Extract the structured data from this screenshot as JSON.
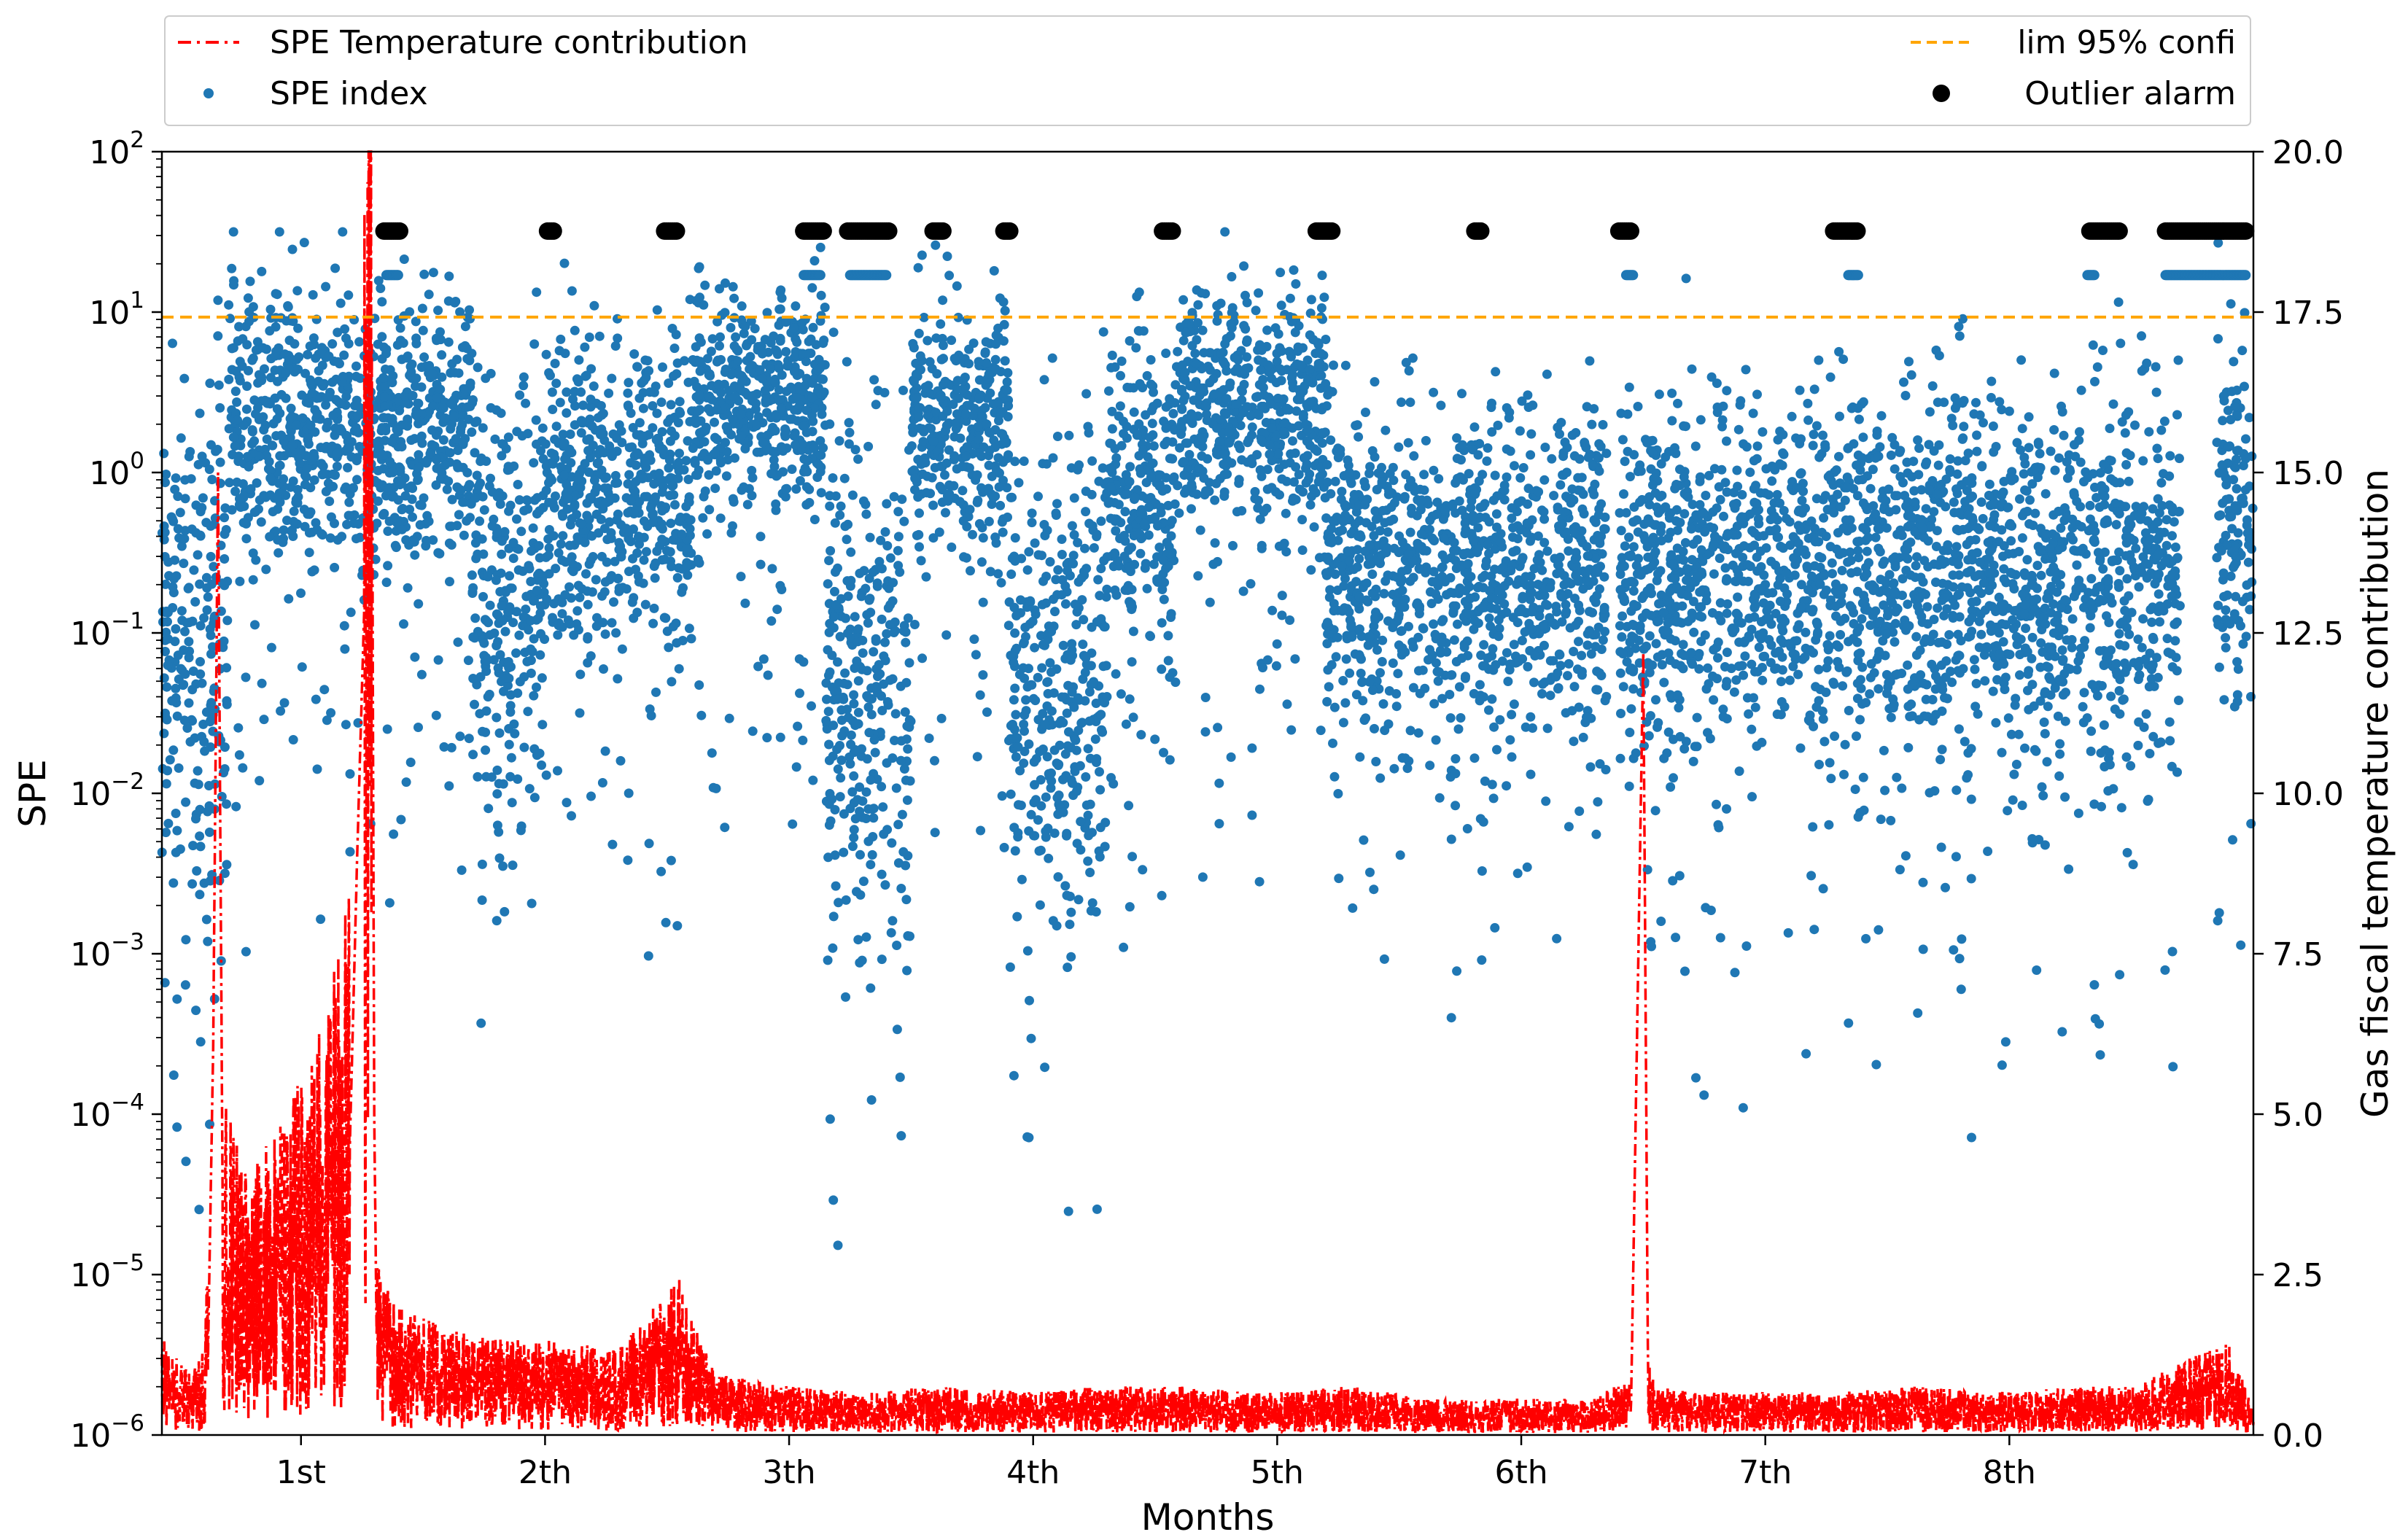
{
  "chart_data": {
    "type": "scatter",
    "xlabel": "Months",
    "ylabel": "SPE",
    "y2label": "Gas fiscal temperature contribution",
    "x_tick_labels": [
      "1st",
      "2th",
      "3th",
      "4th",
      "5th",
      "6th",
      "7th",
      "8th"
    ],
    "x_tick_values": [
      1,
      2,
      3,
      4,
      5,
      6,
      7,
      8
    ],
    "xlim": [
      0.43,
      9.0
    ],
    "y_scale": "log",
    "ylim": [
      1e-06,
      100
    ],
    "y_tick_labels": [
      {
        "base": "10",
        "exp": "−6"
      },
      {
        "base": "10",
        "exp": "−5"
      },
      {
        "base": "10",
        "exp": "−4"
      },
      {
        "base": "10",
        "exp": "−3"
      },
      {
        "base": "10",
        "exp": "−2"
      },
      {
        "base": "10",
        "exp": "−1"
      },
      {
        "base": "10",
        "exp": "0"
      },
      {
        "base": "10",
        "exp": "1"
      },
      {
        "base": "10",
        "exp": "2"
      }
    ],
    "y2lim": [
      0.0,
      20.0
    ],
    "y2_tick_labels": [
      "0.0",
      "2.5",
      "5.0",
      "7.5",
      "10.0",
      "12.5",
      "15.0",
      "17.5",
      "20.0"
    ],
    "legend_position": "top, above plot",
    "legend": [
      {
        "label": "SPE Temperature contribution",
        "color": "#ff0000",
        "style": "dash-dot line"
      },
      {
        "label": "SPE index",
        "color": "#1f77b4",
        "style": "dot"
      },
      {
        "label": "lim 95% confi",
        "color": "#ffa500",
        "style": "dashed line"
      },
      {
        "label": "Outlier alarm",
        "color": "#000000",
        "style": "dot"
      }
    ],
    "series": [
      {
        "name": "SPE index",
        "axis": "left",
        "color": "#1f77b4",
        "segments": [
          {
            "x": [
              0.43,
              0.7
            ],
            "center": 0.1,
            "spread": 1.5
          },
          {
            "x": [
              0.7,
              1.45
            ],
            "center": 2.0,
            "spread": 0.8
          },
          {
            "x": [
              1.45,
              1.7
            ],
            "center": 2.0,
            "spread": 0.7
          },
          {
            "x": [
              1.7,
              2.0
            ],
            "center": 0.2,
            "spread": 1.2
          },
          {
            "x": [
              2.0,
              2.6
            ],
            "center": 0.7,
            "spread": 0.8
          },
          {
            "x": [
              2.6,
              3.15
            ],
            "center": 3.0,
            "spread": 0.6
          },
          {
            "x": [
              3.15,
              3.5
            ],
            "center": 0.05,
            "spread": 1.4
          },
          {
            "x": [
              3.5,
              3.9
            ],
            "center": 2.0,
            "spread": 0.7
          },
          {
            "x": [
              3.9,
              4.3
            ],
            "center": 0.05,
            "spread": 1.3
          },
          {
            "x": [
              4.3,
              4.6
            ],
            "center": 0.6,
            "spread": 1.0
          },
          {
            "x": [
              4.6,
              5.2
            ],
            "center": 2.5,
            "spread": 0.7
          },
          {
            "x": [
              5.2,
              6.35
            ],
            "center": 0.25,
            "spread": 0.9
          },
          {
            "x": [
              6.4,
              8.7
            ],
            "center": 0.25,
            "spread": 1.0
          },
          {
            "x": [
              8.85,
              9.0
            ],
            "center": 0.5,
            "spread": 1.0
          }
        ]
      },
      {
        "name": "SPE Temperature contribution",
        "axis": "right",
        "color": "#ff0000",
        "x": [
          0.43,
          0.5,
          0.55,
          0.6,
          0.62,
          0.64,
          0.66,
          0.68,
          0.72,
          0.8,
          0.9,
          1.0,
          1.1,
          1.2,
          1.23,
          1.26,
          1.28,
          1.29,
          1.3,
          1.31,
          1.35,
          1.45,
          1.6,
          1.8,
          2.0,
          2.3,
          2.55,
          2.6,
          2.7,
          3.0,
          3.3,
          3.6,
          4.0,
          4.3,
          4.6,
          5.0,
          5.3,
          5.6,
          6.0,
          6.3,
          6.45,
          6.5,
          6.52,
          6.55,
          6.7,
          7.0,
          7.3,
          7.6,
          8.0,
          8.3,
          8.5,
          8.7,
          8.9,
          9.0
        ],
        "y": [
          0.8,
          0.6,
          0.5,
          0.7,
          1.5,
          6.0,
          15.0,
          3.0,
          2.5,
          2.2,
          2.5,
          3.0,
          3.5,
          4.5,
          9.0,
          13.0,
          15.0,
          17.0,
          5.0,
          1.5,
          1.2,
          1.0,
          0.9,
          0.8,
          0.8,
          0.7,
          1.3,
          1.0,
          0.5,
          0.4,
          0.35,
          0.4,
          0.35,
          0.4,
          0.4,
          0.35,
          0.4,
          0.3,
          0.3,
          0.3,
          0.5,
          12.2,
          0.6,
          0.4,
          0.35,
          0.35,
          0.35,
          0.4,
          0.35,
          0.4,
          0.4,
          0.6,
          0.8,
          0.2
        ]
      },
      {
        "name": "lim 95% confi",
        "axis": "left",
        "color": "#ffa500",
        "y": 9.3
      },
      {
        "name": "Outlier alarm",
        "axis": "left",
        "color": "#000000",
        "y": 32,
        "ranges": [
          [
            1.34,
            1.41
          ],
          [
            2.01,
            2.04
          ],
          [
            2.49,
            2.54
          ],
          [
            3.06,
            3.14
          ],
          [
            3.24,
            3.41
          ],
          [
            3.59,
            3.63
          ],
          [
            3.88,
            3.91
          ],
          [
            4.53,
            4.57
          ],
          [
            5.16,
            5.23
          ],
          [
            5.81,
            5.84
          ],
          [
            6.4,
            6.45
          ],
          [
            7.28,
            7.38
          ],
          [
            8.33,
            8.45
          ],
          [
            8.64,
            8.97
          ]
        ]
      },
      {
        "name": "SPE index (alarm band)",
        "axis": "left",
        "color": "#1f77b4",
        "y": 17,
        "ranges": [
          [
            1.35,
            1.4
          ],
          [
            3.06,
            3.13
          ],
          [
            3.25,
            3.4
          ],
          [
            6.43,
            6.46
          ],
          [
            7.34,
            7.38
          ],
          [
            8.32,
            8.35
          ],
          [
            8.64,
            8.97
          ]
        ]
      }
    ]
  }
}
